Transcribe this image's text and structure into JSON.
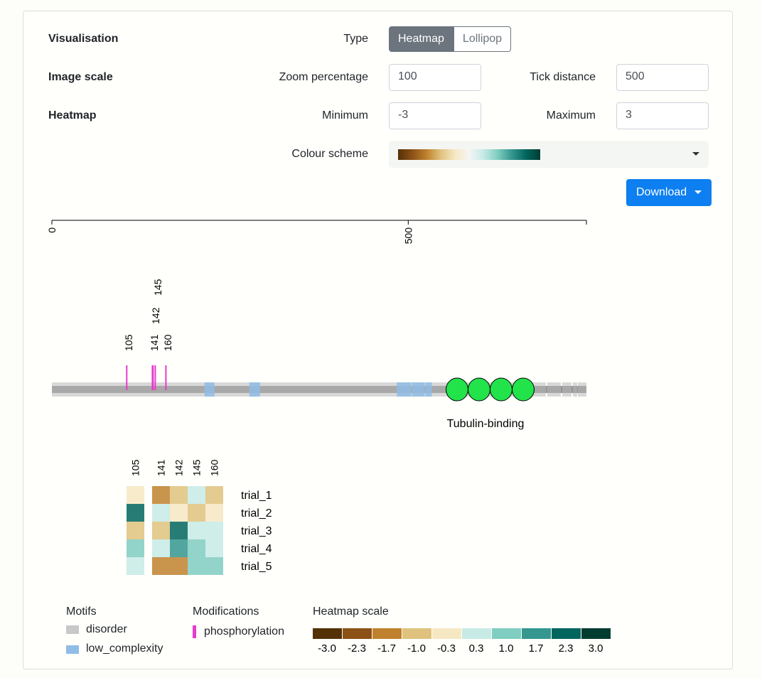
{
  "visualisation": {
    "section_label": "Visualisation",
    "type_label": "Type",
    "type_options": [
      "Heatmap",
      "Lollipop"
    ],
    "type_selected": "Heatmap"
  },
  "image_scale": {
    "section_label": "Image scale",
    "zoom_label": "Zoom percentage",
    "zoom_value": "100",
    "tick_label": "Tick distance",
    "tick_value": "500"
  },
  "heatmap": {
    "section_label": "Heatmap",
    "min_label": "Minimum",
    "min_value": "-3",
    "max_label": "Maximum",
    "max_value": "3",
    "colour_label": "Colour scheme"
  },
  "download_label": "Download",
  "colors": {
    "scale": [
      "#543005",
      "#8c5116",
      "#bf812d",
      "#dfc27d",
      "#f6e8c3",
      "#c7eae5",
      "#80cdc1",
      "#35978f",
      "#01665e",
      "#003c30"
    ],
    "disorder": "#c8c8c8",
    "low_complexity": "#8fbde6",
    "phosphorylation": "#e63ccc",
    "domain_fill": "#22e34a"
  },
  "axis": {
    "ticks": [
      "0",
      "500"
    ],
    "tick_values": [
      0,
      500
    ],
    "max": 750
  },
  "protein": {
    "length": 750,
    "sites": [
      {
        "label": "105",
        "pos": 105
      },
      {
        "label": "141",
        "pos": 141
      },
      {
        "label": "142",
        "pos": 142
      },
      {
        "label": "145",
        "pos": 145
      },
      {
        "label": "160",
        "pos": 160
      }
    ],
    "low_complexity": [
      [
        214,
        228
      ],
      [
        277,
        292
      ],
      [
        484,
        504
      ],
      [
        505,
        523
      ],
      [
        524,
        533
      ]
    ],
    "domain_label": "Tubulin-binding",
    "domain_count": 4
  },
  "heatmap_table": {
    "columns": [
      "105",
      "141",
      "142",
      "145",
      "160"
    ],
    "rows": [
      "trial_1",
      "trial_2",
      "trial_3",
      "trial_4",
      "trial_5"
    ],
    "values": [
      [
        -0.5,
        -1.4,
        -1.1,
        0.3,
        -1.1
      ],
      [
        2.0,
        0.0,
        -0.1,
        -0.8,
        -0.1
      ],
      [
        -0.9,
        -1.0,
        2.0,
        0.1,
        0.2
      ],
      [
        1.1,
        0.5,
        1.2,
        0.6,
        0.2
      ],
      [
        0.3,
        -1.7,
        -1.7,
        1.0,
        1.0
      ]
    ]
  },
  "legend": {
    "motifs_title": "Motifs",
    "motifs": [
      {
        "label": "disorder",
        "color": "#c8c8c8"
      },
      {
        "label": "low_complexity",
        "color": "#8fbde6"
      }
    ],
    "modifications_title": "Modifications",
    "modifications": [
      {
        "label": "phosphorylation",
        "color": "#e63ccc"
      }
    ],
    "scale_title": "Heatmap scale",
    "scale_labels": [
      "-3.0",
      "-2.3",
      "-1.7",
      "-1.0",
      "-0.3",
      "0.3",
      "1.0",
      "1.7",
      "2.3",
      "3.0"
    ]
  }
}
